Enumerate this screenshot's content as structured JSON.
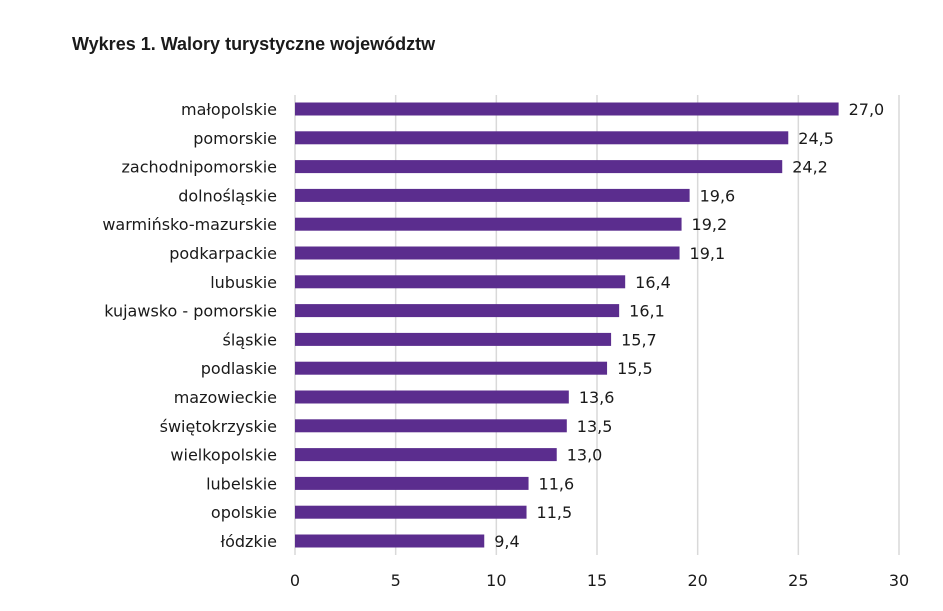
{
  "title": "Wykres 1. Walory turystyczne województw",
  "colors": {
    "bar": "#5b2d8e",
    "grid": "#d9d9d9",
    "text": "#1a1a1a"
  },
  "chart_data": {
    "type": "bar",
    "orientation": "horizontal",
    "title": "Wykres 1. Walory turystyczne województw",
    "xlabel": "",
    "ylabel": "",
    "xlim": [
      0,
      30
    ],
    "xticks": [
      0,
      5,
      10,
      15,
      20,
      25,
      30
    ],
    "grid": "vertical",
    "categories": [
      "małopolskie",
      "pomorskie",
      "zachodnipomorskie",
      "dolnośląskie",
      "warmińsko-mazurskie",
      "podkarpackie",
      "lubuskie",
      "kujawsko - pomorskie",
      "śląskie",
      "podlaskie",
      "mazowieckie",
      "świętokrzyskie",
      "wielkopolskie",
      "lubelskie",
      "opolskie",
      "łódzkie"
    ],
    "values": [
      27.0,
      24.5,
      24.2,
      19.6,
      19.2,
      19.1,
      16.4,
      16.1,
      15.7,
      15.5,
      13.6,
      13.5,
      13.0,
      11.6,
      11.5,
      9.4
    ],
    "value_labels": [
      "27,0",
      "24,5",
      "24,2",
      "19,6",
      "19,2",
      "19,1",
      "16,4",
      "16,1",
      "15,7",
      "15,5",
      "13,6",
      "13,5",
      "13,0",
      "11,6",
      "11,5",
      "9,4"
    ]
  }
}
